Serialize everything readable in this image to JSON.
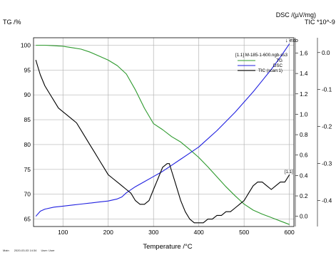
{
  "footer": {
    "main_label": "Main",
    "date": "2020-03-03 14:34",
    "user": "User: User"
  },
  "chart_data": {
    "type": "line",
    "axes": {
      "tg": {
        "title": "TG /%",
        "ylim": [
          63.5,
          101.5
        ],
        "ticks": [
          65,
          70,
          75,
          80,
          85,
          90,
          95,
          100
        ]
      },
      "dsc": {
        "title": "DSC /(µV/mg)",
        "ylim": [
          -0.1,
          1.75
        ],
        "ticks": [
          0.0,
          0.2,
          0.4,
          0.6,
          0.8,
          1.0,
          1.2,
          1.4,
          1.6
        ]
      },
      "tic": {
        "title": "TIC *10^-9 /",
        "ylim": [
          -0.47,
          0.04
        ],
        "ticks": [
          0.0,
          -0.1,
          -0.2,
          -0.3,
          -0.4
        ]
      },
      "x": {
        "title": "Temperature /°C",
        "xlim": [
          35,
          610
        ],
        "ticks": [
          100,
          200,
          300,
          400,
          500,
          600
        ]
      }
    },
    "grid": true,
    "legend_placement": "top-right",
    "legend_header": "[1.1]  M-185-1-600.ngb-ss3",
    "exo_label": "↓ exo",
    "end_label": "[1.1]",
    "series": [
      {
        "name": "TG",
        "axis": "tg",
        "color": "#2e9a2e",
        "x": [
          40,
          60,
          80,
          100,
          120,
          140,
          160,
          180,
          200,
          220,
          240,
          260,
          280,
          300,
          320,
          340,
          360,
          380,
          400,
          420,
          440,
          460,
          480,
          500,
          520,
          540,
          560,
          580,
          600
        ],
        "y": [
          100,
          100,
          99.9,
          99.8,
          99.5,
          99.2,
          98.6,
          97.8,
          97.0,
          95.9,
          94.2,
          91.0,
          87.3,
          84.2,
          83.0,
          81.6,
          80.5,
          79.0,
          77.4,
          75.5,
          73.5,
          71.5,
          69.7,
          68.0,
          66.8,
          66.0,
          65.3,
          64.6,
          63.9
        ]
      },
      {
        "name": "DSC",
        "axis": "dsc",
        "color": "#2020e0",
        "x": [
          40,
          50,
          60,
          80,
          100,
          120,
          140,
          160,
          180,
          200,
          220,
          230,
          240,
          260,
          280,
          300,
          320,
          340,
          360,
          380,
          400,
          420,
          440,
          460,
          480,
          500,
          520,
          540,
          560,
          580,
          600
        ],
        "y": [
          0.0,
          0.05,
          0.07,
          0.09,
          0.1,
          0.11,
          0.12,
          0.13,
          0.14,
          0.15,
          0.17,
          0.19,
          0.23,
          0.29,
          0.34,
          0.39,
          0.44,
          0.5,
          0.56,
          0.62,
          0.68,
          0.76,
          0.84,
          0.93,
          1.02,
          1.12,
          1.22,
          1.33,
          1.44,
          1.56,
          1.69
        ]
      },
      {
        "name": "TIC (scan:1)",
        "axis": "tic",
        "color": "#000000",
        "x": [
          40,
          45,
          50,
          60,
          70,
          80,
          90,
          100,
          110,
          120,
          130,
          140,
          150,
          160,
          170,
          180,
          190,
          200,
          210,
          220,
          230,
          240,
          250,
          260,
          270,
          280,
          290,
          300,
          310,
          320,
          330,
          335,
          340,
          350,
          360,
          370,
          380,
          390,
          400,
          410,
          420,
          430,
          440,
          450,
          460,
          470,
          480,
          490,
          500,
          510,
          520,
          530,
          540,
          550,
          560,
          570,
          580,
          590,
          600
        ],
        "y": [
          -0.02,
          -0.04,
          -0.06,
          -0.09,
          -0.11,
          -0.13,
          -0.15,
          -0.16,
          -0.17,
          -0.18,
          -0.19,
          -0.21,
          -0.23,
          -0.25,
          -0.27,
          -0.29,
          -0.31,
          -0.33,
          -0.34,
          -0.35,
          -0.36,
          -0.37,
          -0.38,
          -0.4,
          -0.41,
          -0.41,
          -0.4,
          -0.37,
          -0.34,
          -0.31,
          -0.3,
          -0.3,
          -0.32,
          -0.36,
          -0.4,
          -0.43,
          -0.45,
          -0.46,
          -0.46,
          -0.46,
          -0.45,
          -0.45,
          -0.44,
          -0.44,
          -0.43,
          -0.43,
          -0.42,
          -0.41,
          -0.4,
          -0.38,
          -0.36,
          -0.35,
          -0.35,
          -0.36,
          -0.37,
          -0.36,
          -0.35,
          -0.35,
          -0.33
        ]
      }
    ]
  }
}
